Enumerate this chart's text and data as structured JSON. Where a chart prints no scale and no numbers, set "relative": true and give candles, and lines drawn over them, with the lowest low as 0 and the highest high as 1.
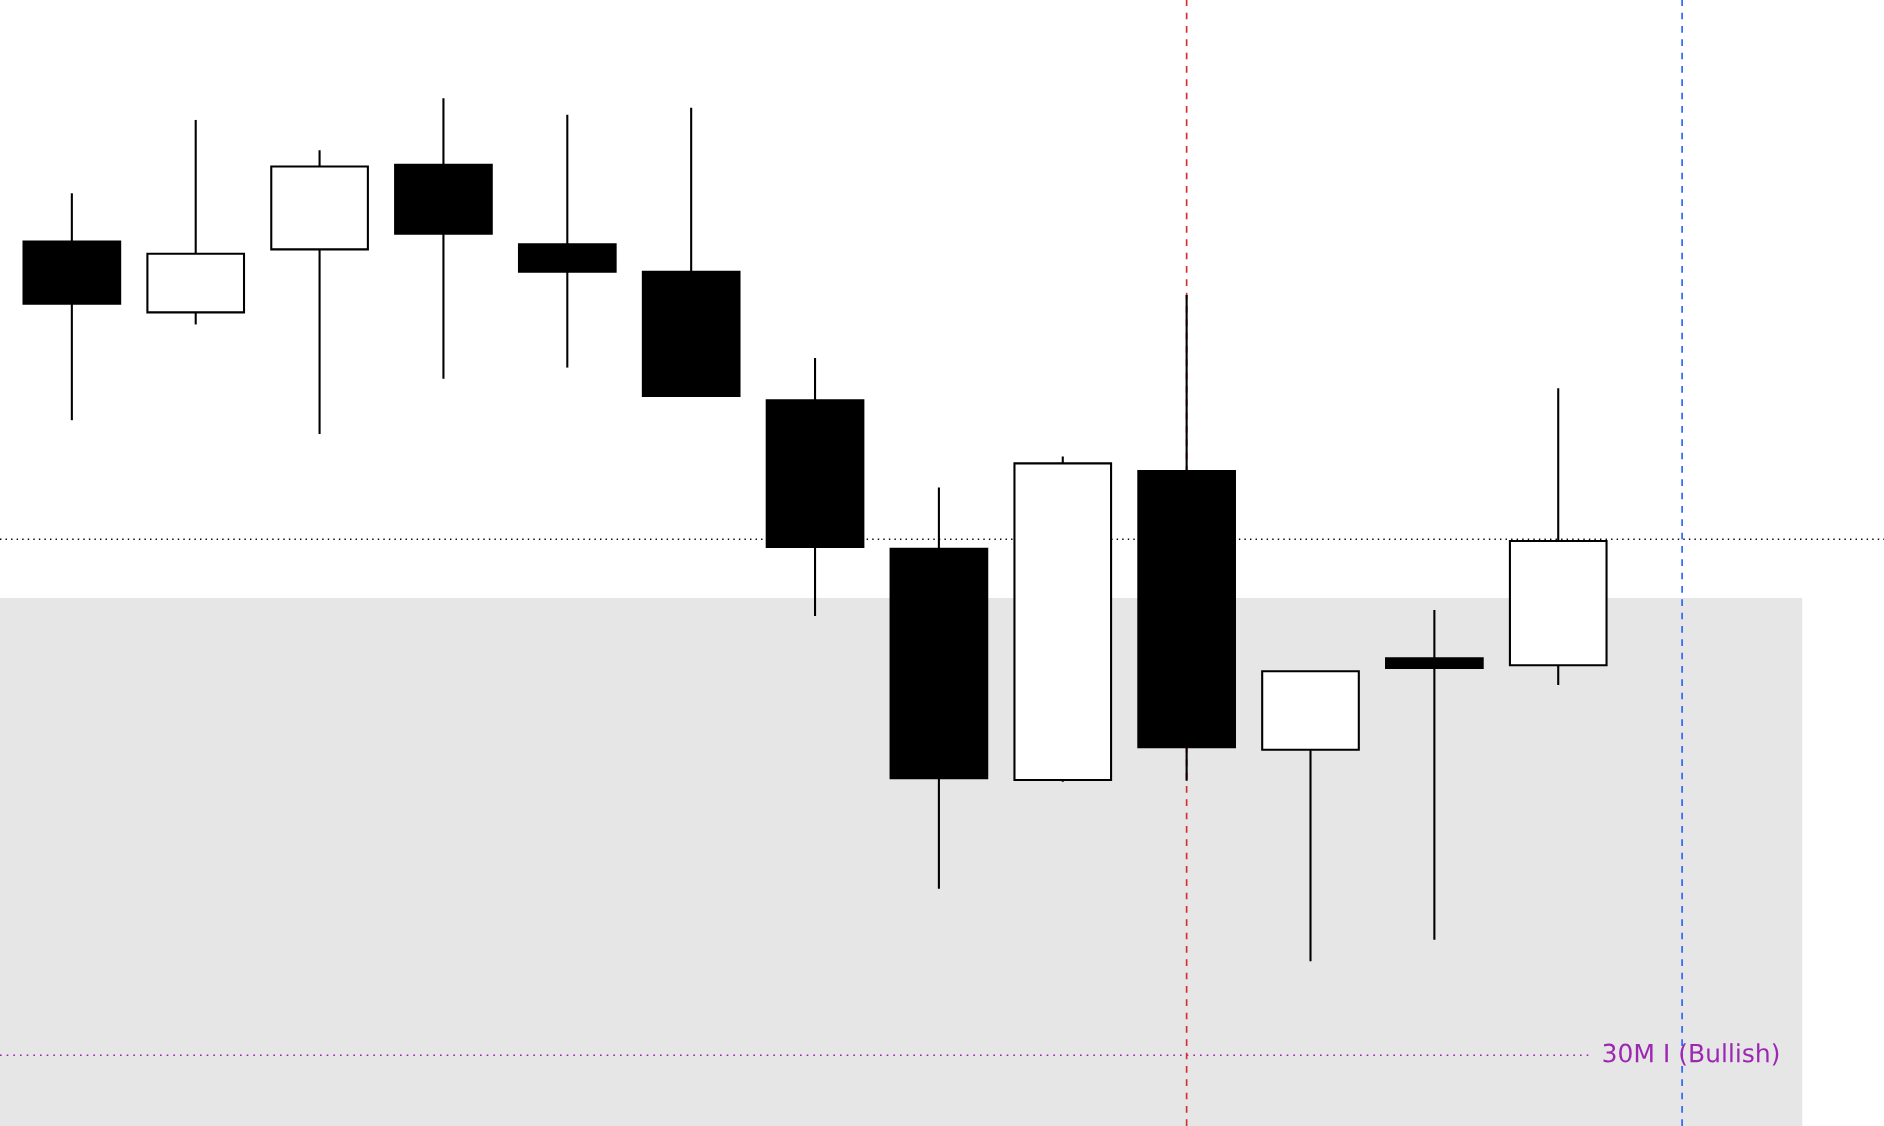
{
  "chart_data": {
    "type": "candlestick",
    "relative": true,
    "categories": [
      null,
      null,
      null,
      null,
      null,
      null,
      null,
      null,
      null,
      null,
      null,
      null,
      null
    ],
    "ohlc": [
      [
        0.834,
        0.89,
        0.627,
        0.762
      ],
      [
        0.752,
        0.975,
        0.738,
        0.82
      ],
      [
        0.825,
        0.94,
        0.611,
        0.921
      ],
      [
        0.923,
        1.0,
        0.675,
        0.843
      ],
      [
        0.831,
        0.981,
        0.688,
        0.799
      ],
      [
        0.799,
        0.989,
        0.655,
        0.655
      ],
      [
        0.65,
        0.699,
        0.4,
        0.48
      ],
      [
        0.478,
        0.549,
        0.084,
        0.212
      ],
      [
        0.21,
        0.585,
        0.208,
        0.577
      ],
      [
        0.568,
        0.772,
        0.209,
        0.248
      ],
      [
        0.245,
        0.336,
        0.0,
        0.336
      ],
      [
        0.351,
        0.407,
        0.025,
        0.34
      ],
      [
        0.343,
        0.664,
        0.32,
        0.487
      ]
    ],
    "ref_lines": [
      {
        "axis": "y",
        "value": 0.489,
        "color": "#000000",
        "line_style": "dotted"
      },
      {
        "axis": "y",
        "value": -0.109,
        "label": "30M I (Bullish)",
        "color": "#9c27b0",
        "line_style": "dotted"
      }
    ],
    "bands": [
      {
        "axis": "y",
        "from": -0.191,
        "to": 0.421,
        "color": "#e6e6e6"
      }
    ]
  }
}
